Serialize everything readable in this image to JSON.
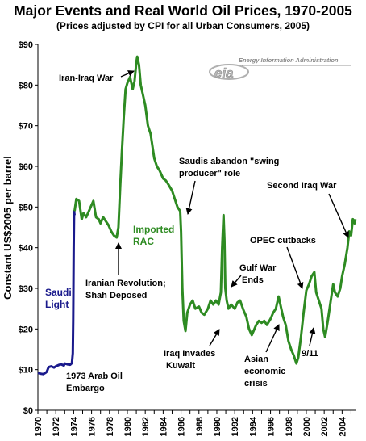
{
  "chart_data": {
    "type": "line",
    "title": "Major Events and Real World Oil Prices, 1970-2005",
    "subtitle": "(Prices adjusted by CPI for all Urban Consumers, 2005)",
    "ylabel": "Constant US$2005 per barrel",
    "xlabel": "",
    "xlim": [
      1970,
      2005.5
    ],
    "ylim": [
      0,
      90
    ],
    "x_ticks": [
      "1970",
      "1972",
      "1974",
      "1976",
      "1978",
      "1980",
      "1982",
      "1984",
      "1986",
      "1988",
      "1990",
      "1992",
      "1994",
      "1996",
      "1998",
      "2000",
      "2002",
      "2004"
    ],
    "y_ticks": [
      "$0",
      "$10",
      "$20",
      "$30",
      "$40",
      "$50",
      "$60",
      "$70",
      "$80",
      "$90"
    ],
    "grid": false,
    "legend": "none",
    "logo": "Energy Information Administration",
    "logo_mark": "eia",
    "series": [
      {
        "name": "Saudi Light",
        "color": "#1a1a8c",
        "x": [
          1970.0,
          1970.3,
          1970.6,
          1970.9,
          1971.0,
          1971.2,
          1971.5,
          1971.8,
          1972.0,
          1972.3,
          1972.6,
          1972.9,
          1973.0,
          1973.3,
          1973.6,
          1973.8,
          1973.9,
          1973.95,
          1974.0,
          1974.05,
          1974.1
        ],
        "y": [
          9.2,
          9.0,
          8.9,
          9.3,
          9.5,
          10.6,
          10.8,
          10.5,
          10.8,
          11.1,
          11.3,
          11.0,
          11.5,
          11.3,
          11.2,
          11.6,
          14.0,
          22.0,
          40.0,
          49.0,
          48.0
        ]
      },
      {
        "name": "Imported RAC",
        "color": "#2e8b22",
        "x": [
          1974.1,
          1974.3,
          1974.6,
          1974.9,
          1975.1,
          1975.4,
          1975.7,
          1976.0,
          1976.2,
          1976.5,
          1976.8,
          1977.0,
          1977.3,
          1977.6,
          1977.9,
          1978.2,
          1978.5,
          1978.8,
          1979.0,
          1979.2,
          1979.4,
          1979.6,
          1979.8,
          1980.0,
          1980.3,
          1980.6,
          1980.8,
          1981.0,
          1981.1,
          1981.3,
          1981.5,
          1981.7,
          1982.0,
          1982.3,
          1982.6,
          1983.0,
          1983.3,
          1983.6,
          1984.0,
          1984.3,
          1984.6,
          1985.0,
          1985.3,
          1985.6,
          1985.9,
          1986.0,
          1986.15,
          1986.3,
          1986.5,
          1986.7,
          1987.0,
          1987.3,
          1987.6,
          1988.0,
          1988.3,
          1988.6,
          1989.0,
          1989.3,
          1989.6,
          1989.9,
          1990.2,
          1990.45,
          1990.6,
          1990.75,
          1990.85,
          1990.95,
          1991.1,
          1991.3,
          1991.6,
          1992.0,
          1992.3,
          1992.6,
          1993.0,
          1993.3,
          1993.6,
          1993.9,
          1994.1,
          1994.4,
          1994.7,
          1995.0,
          1995.3,
          1995.6,
          1996.0,
          1996.3,
          1996.6,
          1996.9,
          1997.1,
          1997.4,
          1997.7,
          1998.0,
          1998.3,
          1998.6,
          1998.9,
          1999.1,
          1999.4,
          1999.7,
          2000.0,
          2000.3,
          2000.6,
          2000.9,
          2001.1,
          2001.4,
          2001.7,
          2001.9,
          2002.1,
          2002.4,
          2002.7,
          2003.0,
          2003.2,
          2003.5,
          2003.8,
          2004.0,
          2004.3,
          2004.6,
          2004.8,
          2005.0,
          2005.2,
          2005.4,
          2005.5
        ],
        "y": [
          49.0,
          52.0,
          51.5,
          47.0,
          48.5,
          47.5,
          49.0,
          50.5,
          51.5,
          47.5,
          47.0,
          46.0,
          47.5,
          46.5,
          45.5,
          44.0,
          43.0,
          42.5,
          45.0,
          55.0,
          64.0,
          72.0,
          79.0,
          80.5,
          82.0,
          79.0,
          81.0,
          85.5,
          87.0,
          85.0,
          80.0,
          78.0,
          75.0,
          70.0,
          68.0,
          62.0,
          60.0,
          59.0,
          57.0,
          56.5,
          55.5,
          54.0,
          52.0,
          50.0,
          49.0,
          44.0,
          30.0,
          22.0,
          19.5,
          24.0,
          26.0,
          27.0,
          25.0,
          25.5,
          24.0,
          23.5,
          25.0,
          27.0,
          26.0,
          27.0,
          26.0,
          29.0,
          40.0,
          48.0,
          42.0,
          30.0,
          27.0,
          25.0,
          26.0,
          25.0,
          26.5,
          27.0,
          24.5,
          23.0,
          20.0,
          18.5,
          19.5,
          21.0,
          22.0,
          21.5,
          22.0,
          21.0,
          22.5,
          24.0,
          25.0,
          28.0,
          26.0,
          23.0,
          21.0,
          17.0,
          15.0,
          13.5,
          11.5,
          13.0,
          18.0,
          24.0,
          29.5,
          31.0,
          33.0,
          34.0,
          29.0,
          27.0,
          25.0,
          20.0,
          18.0,
          22.0,
          26.5,
          31.0,
          29.0,
          28.0,
          30.0,
          33.0,
          36.0,
          40.0,
          44.0,
          43.0,
          47.0,
          46.0,
          47.0
        ]
      }
    ],
    "annotations": {
      "iran_iraq_war": "Iran-Iraq War",
      "saudis_line1": "Saudis abandon \"swing",
      "saudis_line2": "producer\" role",
      "second_iraq_war": "Second Iraq War",
      "imported_line1": "Imported",
      "imported_line2": "RAC",
      "opec_cutbacks": "OPEC cutbacks",
      "gulf_line1": "Gulf War",
      "gulf_line2": "Ends",
      "iranian_line1": "Iranian Revolution;",
      "iranian_line2": "Shah Deposed",
      "saudi_line1": "Saudi",
      "saudi_line2": "Light",
      "iraq_invades_line1": "Iraq Invades",
      "iraq_invades_line2": "Kuwait",
      "asian_line1": "Asian",
      "asian_line2": "economic",
      "asian_line3": "crisis",
      "nine_eleven": "9/11",
      "arab_line1": "1973 Arab Oil",
      "arab_line2": "Embargo"
    }
  }
}
